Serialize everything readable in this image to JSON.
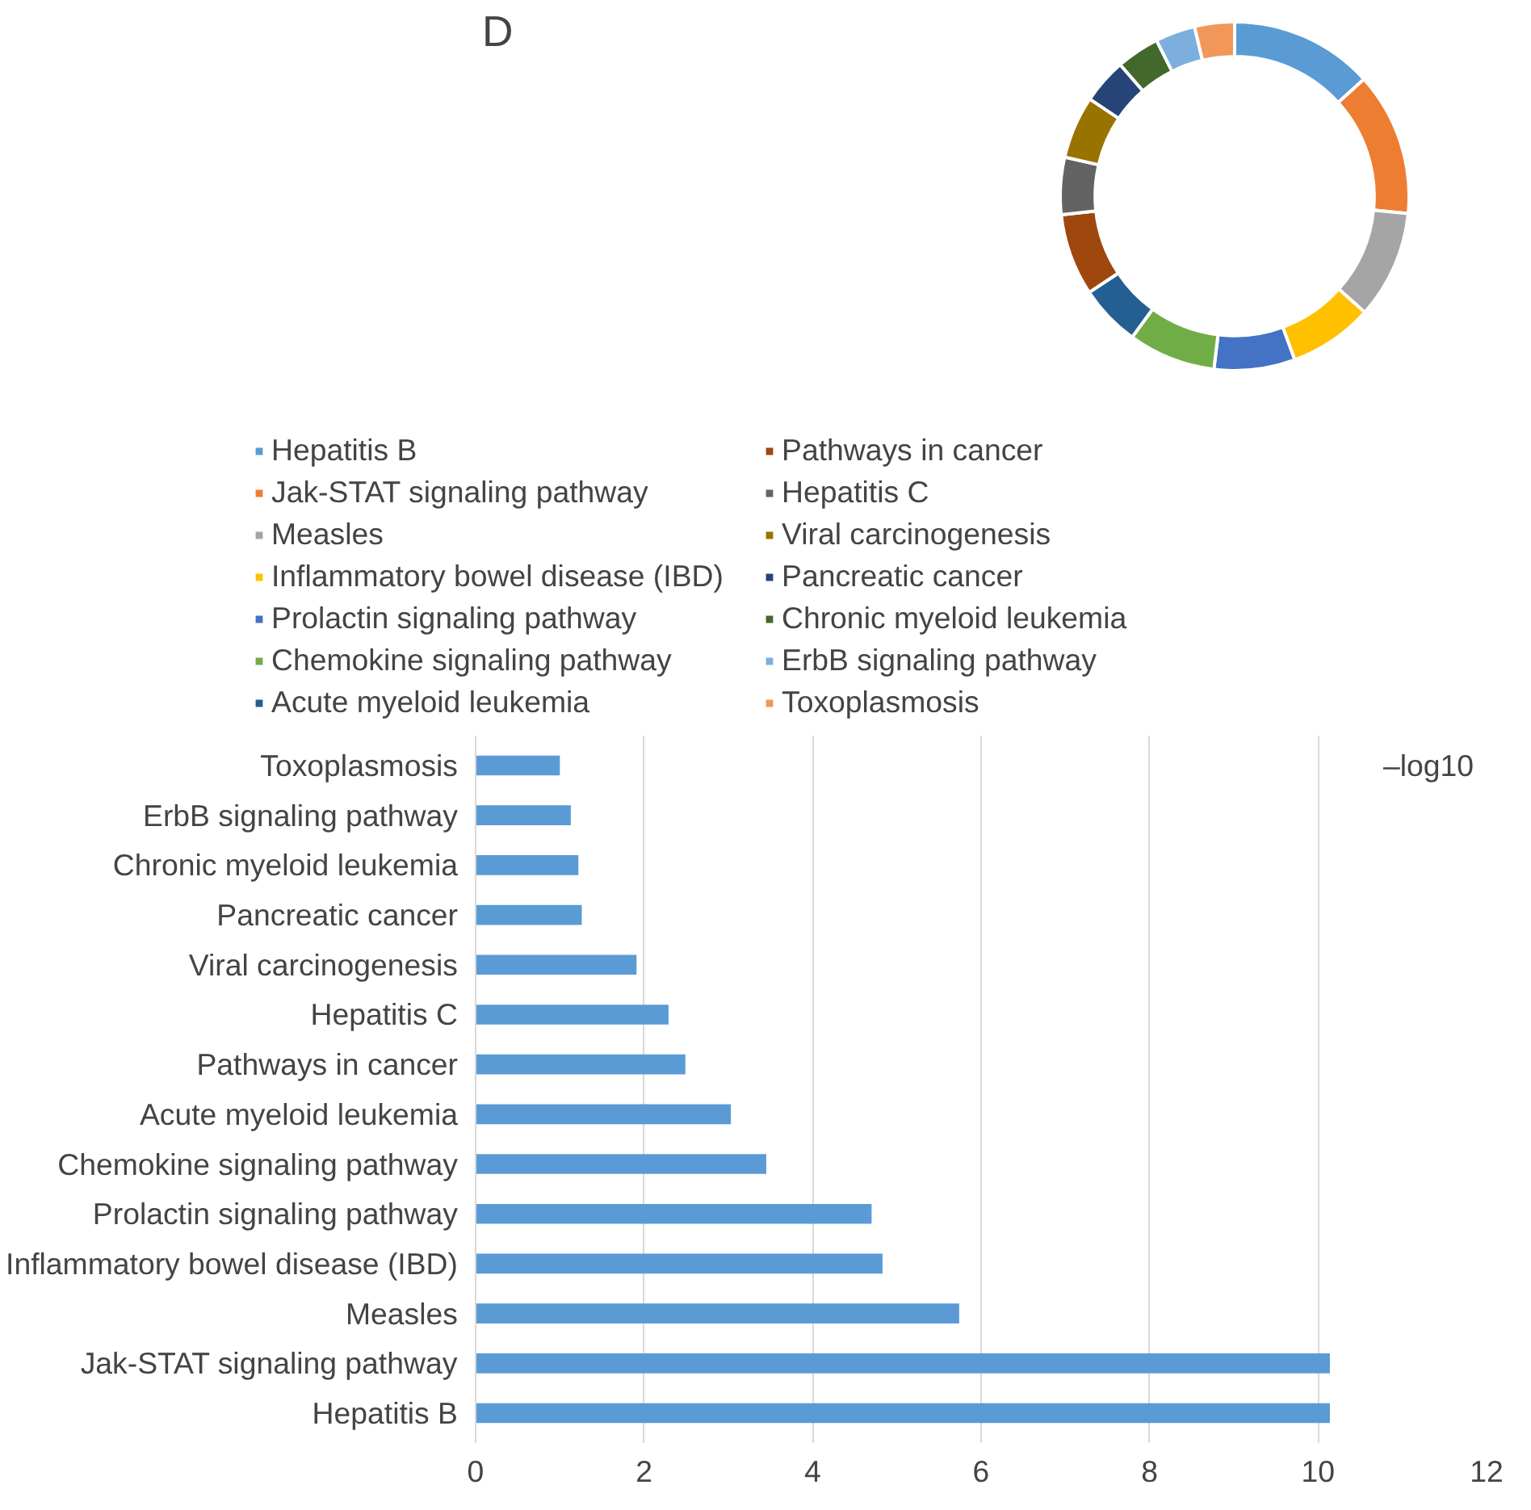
{
  "chart_data": [
    {
      "type": "donut",
      "title": "D",
      "legend": "bottom",
      "categories": [
        "Hepatitis B",
        "Jak-STAT signaling pathway",
        "Measles",
        "Inflammatory bowel disease (IBD)",
        "Prolactin signaling pathway",
        "Chemokine signaling pathway",
        "Acute myeloid leukemia",
        "Pathways in cancer",
        "Hepatitis C",
        "Viral carcinogenesis",
        "Pancreatic cancer",
        "Chronic myeloid leukemia",
        "ErbB signaling pathway",
        "Toxoplasmosis"
      ],
      "values": [
        13.3,
        13.3,
        10.0,
        7.8,
        7.5,
        8.1,
        5.7,
        7.6,
        5.3,
        5.8,
        4.2,
        4.0,
        3.7,
        3.7
      ],
      "colors": [
        "#5b9bd5",
        "#ed7d31",
        "#a5a5a5",
        "#ffc000",
        "#4472c4",
        "#70ad47",
        "#255e91",
        "#9e480e",
        "#636363",
        "#997300",
        "#264478",
        "#43682b",
        "#7cafdd",
        "#f1975a"
      ]
    },
    {
      "type": "bar",
      "orientation": "horizontal",
      "xlabel": "–log10",
      "grid": "x",
      "color": "#5b9bd5",
      "categories": [
        "Toxoplasmosis",
        "ErbB signaling pathway",
        "Chronic myeloid leukemia",
        "Pancreatic cancer",
        "Viral carcinogenesis",
        "Hepatitis C",
        "Pathways in cancer",
        "Acute myeloid leukemia",
        "Chemokine signaling pathway",
        "Prolactin signaling pathway",
        "Inflammatory bowel disease (IBD)",
        "Measles",
        "Jak-STAT signaling pathway",
        "Hepatitis B"
      ],
      "values": [
        1.0,
        1.13,
        1.22,
        1.26,
        1.91,
        2.29,
        2.49,
        3.03,
        3.45,
        4.7,
        4.83,
        5.74,
        10.14,
        10.14
      ],
      "xlim": [
        0,
        12
      ],
      "xticks": [
        0,
        2,
        4,
        6,
        8,
        10,
        12
      ]
    }
  ]
}
